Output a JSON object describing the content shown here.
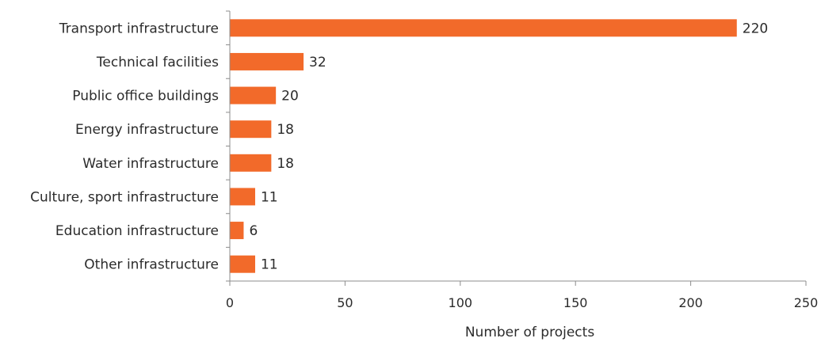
{
  "chart_data": {
    "type": "bar",
    "orientation": "horizontal",
    "categories": [
      "Transport infrastructure",
      "Technical facilities",
      "Public office buildings",
      "Energy infrastructure",
      "Water infrastructure",
      "Culture, sport infrastructure",
      "Education infrastructure",
      "Other infrastructure"
    ],
    "values": [
      220,
      32,
      20,
      18,
      18,
      11,
      6,
      11
    ],
    "xlabel": "Number of projects",
    "ylabel": "",
    "xlim": [
      0,
      250
    ],
    "xticks": [
      0,
      50,
      100,
      150,
      200,
      250
    ],
    "bar_color": "#f26a2a",
    "grid": false,
    "legend": "none"
  }
}
